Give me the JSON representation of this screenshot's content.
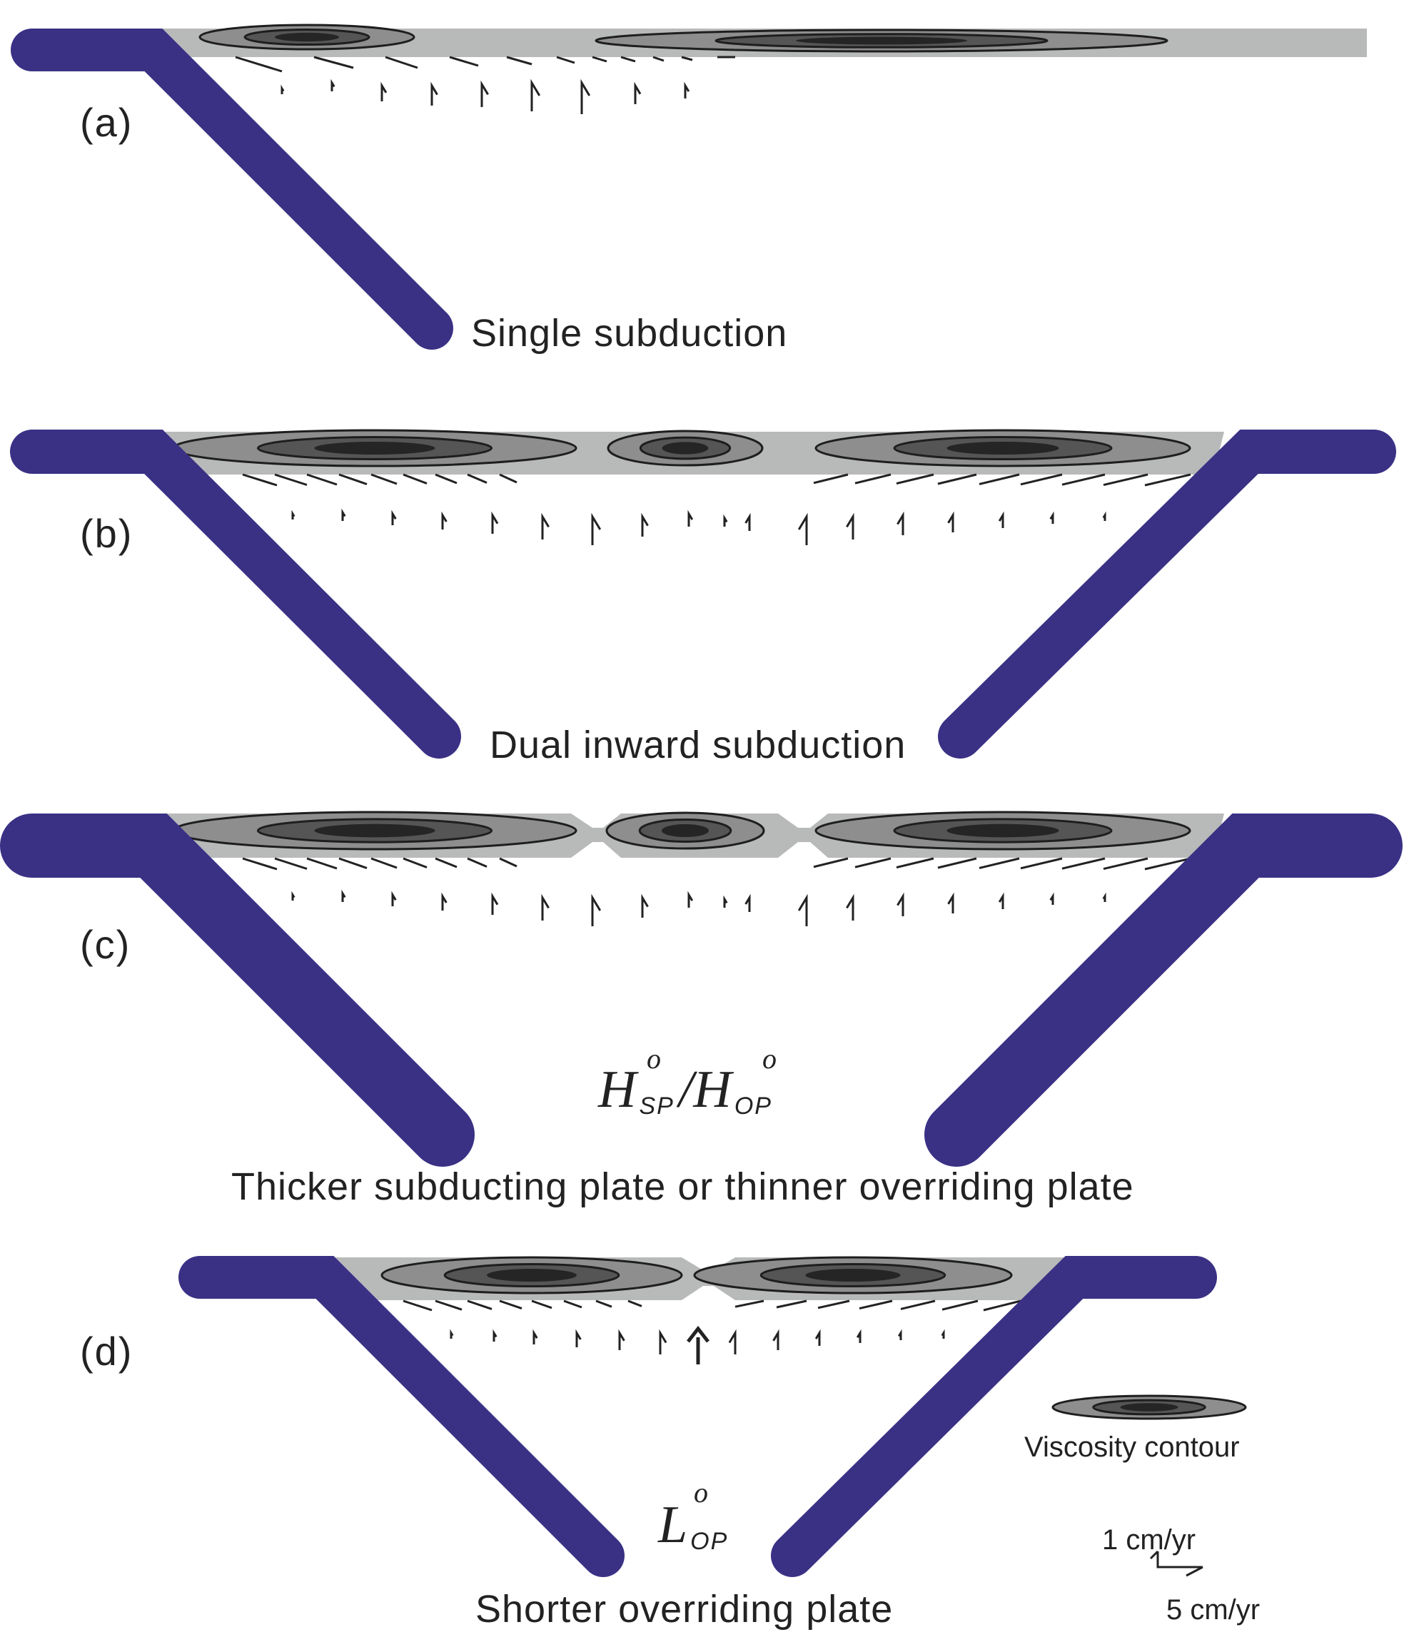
{
  "colors": {
    "slab": "#3a3185",
    "wedge": "#b8b9b9",
    "contour_outer": "#8e8e8e",
    "contour_mid": "#555555",
    "contour_inner": "#252525",
    "arrow": "#222222"
  },
  "panels": [
    {
      "id": "(a)",
      "caption": "Single subduction"
    },
    {
      "id": "(b)",
      "caption": "Dual inward subduction"
    },
    {
      "id": "(c)",
      "caption": "Thicker subducting plate or thinner overriding plate",
      "param": {
        "base1": "H",
        "sub1": "SP",
        "sup1": "o",
        "sep": "/",
        "base2": "H",
        "sub2": "OP",
        "sup2": "o"
      }
    },
    {
      "id": "(d)",
      "caption": "Shorter overriding plate",
      "param": {
        "base1": "L",
        "sub1": "OP",
        "sup1": "o"
      }
    }
  ],
  "legend": {
    "contour_label": "Viscosity contour",
    "scale_vertical": "1 cm/yr",
    "scale_horizontal": "5 cm/yr"
  },
  "icons": {
    "slab": "subducting-slab-shape",
    "ellipse": "viscosity-contour-ellipse",
    "arrow": "velocity-half-arrow"
  }
}
